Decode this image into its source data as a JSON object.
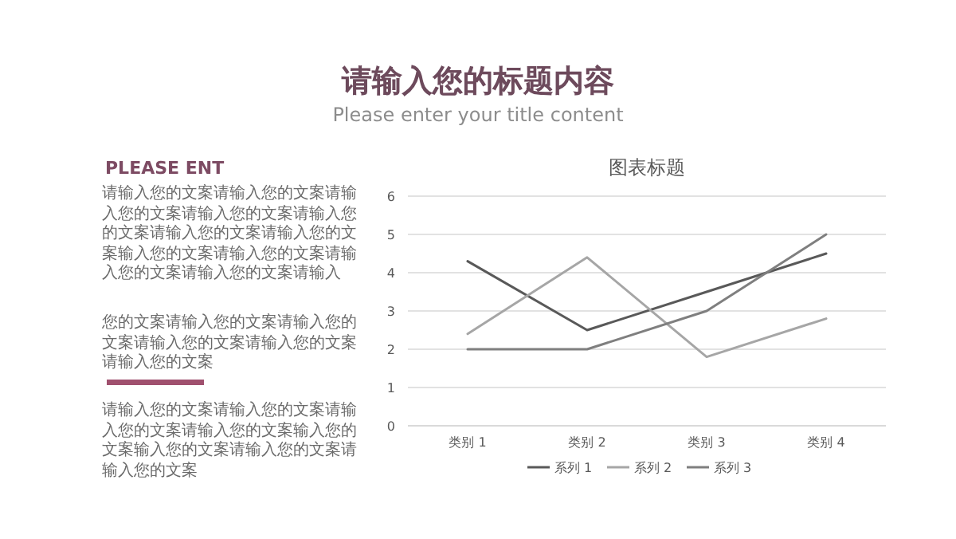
{
  "chart_data": {
    "type": "line",
    "title": "图表标题",
    "categories": [
      "类别 1",
      "类别 2",
      "类别 3",
      "类别 4"
    ],
    "series": [
      {
        "name": "系列 1",
        "color": "#595959",
        "values": [
          4.3,
          2.5,
          3.5,
          4.5
        ]
      },
      {
        "name": "系列 2",
        "color": "#a6a6a6",
        "values": [
          2.4,
          4.4,
          1.8,
          2.8
        ]
      },
      {
        "name": "系列 3",
        "color": "#7f7f7f",
        "values": [
          2,
          2,
          3,
          5
        ]
      }
    ],
    "ylim": [
      0,
      6
    ],
    "yticks": [
      0,
      1,
      2,
      3,
      4,
      5,
      6
    ],
    "grid": "y",
    "legend": "bottom",
    "annotations": [
      "请输入您的标题内容",
      "Please enter your title content",
      "PLEASE ENT",
      "请输入您的文案请输入您的文案请输入您的文案请输入您的文案请输入您的文案请输入您的文案请输入您的文案输入您的文案请输入您的文案请输入您的文案请输入您的文案请输入",
      "您的文案请输入您的文案请输入您的文案请输入您的文案请输入您的文案请输入您的文案",
      "请输入您的文案请输入您的文案请输入您的文案请输入您的文案输入您的文案输入您的文案请输入您的文案请输入您的文案"
    ]
  }
}
